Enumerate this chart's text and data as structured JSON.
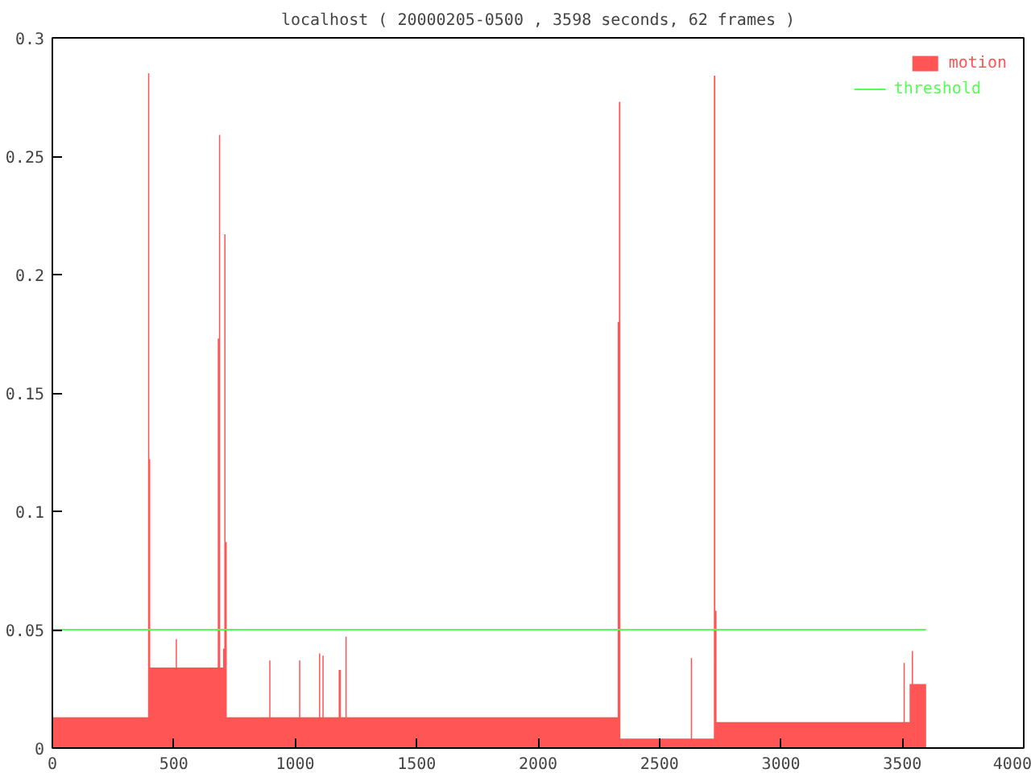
{
  "chart_data": {
    "type": "area",
    "title": "localhost ( 20000205-0500 , 3598 seconds, 62 frames )",
    "xlim": [
      0,
      4000
    ],
    "ylim": [
      0,
      0.3
    ],
    "xticks": [
      0,
      500,
      1000,
      1500,
      2000,
      2500,
      3000,
      3500,
      4000
    ],
    "yticks": [
      0,
      0.05,
      0.1,
      0.15,
      0.2,
      0.25,
      0.3
    ],
    "grid": false,
    "legend": "top right",
    "series": [
      {
        "name": "motion",
        "color": "#ff5555",
        "x": [
          0,
          394,
          394,
          399,
          399,
          403,
          403,
          508,
          508,
          513,
          513,
          681,
          681,
          686,
          686,
          691,
          691,
          703,
          703,
          708,
          708,
          713,
          713,
          718,
          718,
          893,
          893,
          898,
          898,
          1016,
          1016,
          1021,
          1021,
          1098,
          1098,
          1103,
          1103,
          1112,
          1112,
          1117,
          1117,
          1179,
          1179,
          1188,
          1188,
          1207,
          1207,
          1212,
          1212,
          2328,
          2328,
          2333,
          2333,
          2339,
          2339,
          2629,
          2629,
          2634,
          2634,
          2724,
          2724,
          2730,
          2730,
          2735,
          2735,
          3505,
          3505,
          3510,
          3510,
          3530,
          3530,
          3539,
          3539,
          3544,
          3544,
          3598
        ],
        "values": [
          0.013,
          0.013,
          0.285,
          0.285,
          0.122,
          0.122,
          0.034,
          0.034,
          0.046,
          0.046,
          0.034,
          0.034,
          0.173,
          0.173,
          0.259,
          0.259,
          0.034,
          0.034,
          0.042,
          0.042,
          0.217,
          0.217,
          0.087,
          0.087,
          0.013,
          0.013,
          0.037,
          0.037,
          0.013,
          0.013,
          0.037,
          0.037,
          0.013,
          0.013,
          0.04,
          0.04,
          0.013,
          0.013,
          0.039,
          0.039,
          0.013,
          0.013,
          0.033,
          0.033,
          0.013,
          0.013,
          0.047,
          0.047,
          0.013,
          0.013,
          0.18,
          0.18,
          0.273,
          0.273,
          0.004,
          0.004,
          0.038,
          0.038,
          0.004,
          0.004,
          0.284,
          0.284,
          0.058,
          0.058,
          0.011,
          0.011,
          0.036,
          0.036,
          0.011,
          0.011,
          0.027,
          0.027,
          0.041,
          0.041,
          0.027,
          0.027
        ]
      },
      {
        "name": "threshold",
        "color": "#55ff55",
        "type": "line",
        "x": [
          0,
          3598
        ],
        "values": [
          0.05,
          0.05
        ]
      }
    ]
  }
}
